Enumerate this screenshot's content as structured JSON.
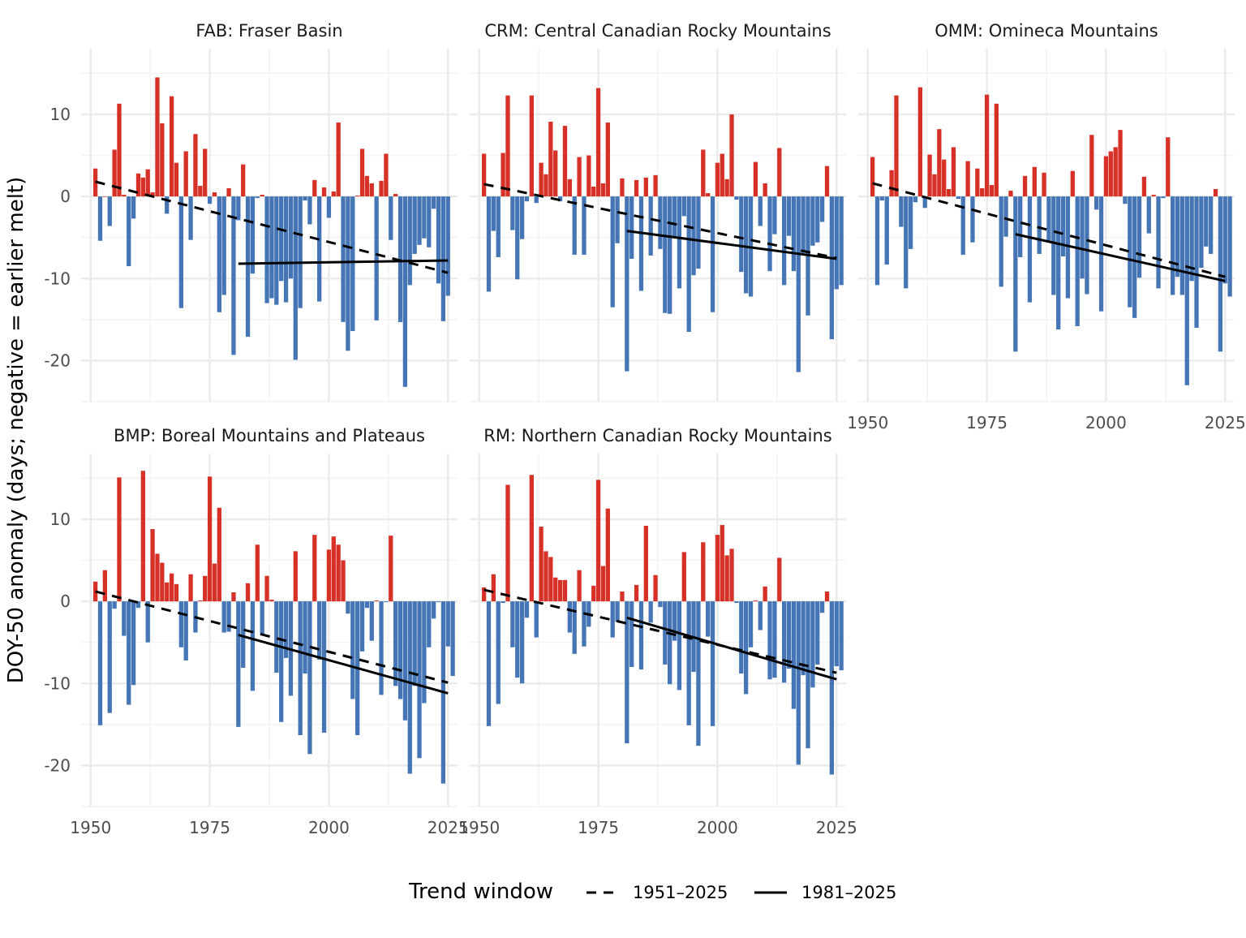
{
  "axes": {
    "ylabel": "DOY-50 anomaly (days; negative = earlier melt)",
    "yticks": [
      -20,
      -10,
      0,
      10
    ],
    "xticks": [
      1950,
      1975,
      2000,
      2025
    ],
    "xlim": [
      1948,
      2027
    ],
    "ylim": [
      -25,
      18
    ]
  },
  "legend": {
    "title": "Trend window",
    "items": [
      {
        "label": "1951–2025",
        "linetype": "dashed"
      },
      {
        "label": "1981–2025",
        "linetype": "solid"
      }
    ]
  },
  "colors": {
    "positive": "#d73027",
    "negative": "#4575b4",
    "trend": "#000000",
    "grid": "#ebebeb"
  },
  "chart_data": [
    {
      "type": "bar",
      "title": "FAB: Fraser Basin",
      "years_start": 1951,
      "values": [
        3.4,
        -5.4,
        0.0,
        -3.6,
        5.7,
        11.3,
        0.2,
        -8.5,
        -2.7,
        2.8,
        2.3,
        3.3,
        0.5,
        14.5,
        8.9,
        -2.1,
        12.2,
        4.1,
        -13.6,
        5.5,
        -5.3,
        7.6,
        1.3,
        5.8,
        -0.9,
        0.5,
        -14.1,
        -12.0,
        1.0,
        -19.3,
        -2.9,
        3.9,
        -17.1,
        -9.4,
        -0.2,
        0.2,
        -13.0,
        -12.4,
        -13.2,
        -10.3,
        -12.9,
        -10.0,
        -19.9,
        -13.6,
        -0.5,
        -3.4,
        2.0,
        -12.8,
        1.1,
        -2.6,
        0.6,
        9.0,
        -15.3,
        -18.8,
        -16.4,
        0.1,
        5.8,
        2.5,
        1.6,
        -15.1,
        1.9,
        5.2,
        -5.3,
        0.3,
        -15.3,
        -23.2,
        -10.8,
        -7.0,
        -5.9,
        -5.1,
        -6.2,
        -1.5,
        -10.6,
        -15.2,
        -12.1
      ],
      "trends": [
        {
          "window": "1951–2025",
          "linetype": "dashed",
          "x": [
            1951,
            2025
          ],
          "y": [
            1.8,
            -9.3
          ]
        },
        {
          "window": "1981–2025",
          "linetype": "solid",
          "x": [
            1981,
            2025
          ],
          "y": [
            -8.2,
            -7.8
          ]
        }
      ]
    },
    {
      "type": "bar",
      "title": "CRM: Central Canadian Rocky Mountains",
      "years_start": 1951,
      "values": [
        5.2,
        -11.6,
        -4.2,
        -7.4,
        5.3,
        12.3,
        -4.1,
        -10.1,
        -5.2,
        -0.6,
        12.3,
        -0.8,
        4.1,
        2.7,
        9.1,
        5.6,
        -0.6,
        8.6,
        2.1,
        -7.1,
        4.8,
        -7.1,
        5.0,
        1.2,
        13.2,
        1.6,
        9.0,
        -13.5,
        -5.7,
        2.2,
        -21.3,
        -7.6,
        2.0,
        -11.5,
        2.3,
        -7.2,
        2.6,
        -6.4,
        -14.2,
        -14.3,
        -4.9,
        -11.2,
        -2.4,
        -16.5,
        -9.6,
        -8.8,
        5.7,
        0.4,
        -14.1,
        4.1,
        5.2,
        2.1,
        10.0,
        -0.4,
        -9.2,
        -11.8,
        -12.2,
        4.2,
        -3.6,
        1.6,
        -9.1,
        -4.6,
        5.9,
        -10.8,
        -4.8,
        -9.1,
        -21.4,
        -6.9,
        -14.5,
        -6.0,
        -5.6,
        -3.1,
        3.7,
        -17.4,
        -11.3,
        -10.8
      ],
      "trends": [
        {
          "window": "1951–2025",
          "linetype": "dashed",
          "x": [
            1951,
            2025
          ],
          "y": [
            1.5,
            -7.5
          ]
        },
        {
          "window": "1981–2025",
          "linetype": "solid",
          "x": [
            1981,
            2025
          ],
          "y": [
            -4.2,
            -7.6
          ]
        }
      ]
    },
    {
      "type": "bar",
      "title": "OMM: Omineca Mountains",
      "years_start": 1951,
      "values": [
        4.8,
        -10.8,
        -0.5,
        -8.3,
        3.2,
        12.3,
        -3.7,
        -11.2,
        -6.4,
        -0.7,
        13.3,
        -1.4,
        5.1,
        2.7,
        8.2,
        4.5,
        0.9,
        6.0,
        -0.3,
        -7.1,
        4.3,
        -5.6,
        3.4,
        1.0,
        12.4,
        1.4,
        11.3,
        -11.0,
        -4.9,
        0.7,
        -18.9,
        -7.4,
        2.5,
        -12.9,
        3.6,
        -7.0,
        2.9,
        -5.5,
        -12.0,
        -16.2,
        -7.3,
        -12.4,
        3.1,
        -15.8,
        -10.0,
        -11.9,
        7.5,
        -1.6,
        -14.0,
        4.9,
        5.5,
        6.0,
        8.1,
        -0.9,
        -13.5,
        -14.8,
        -9.9,
        2.4,
        -4.5,
        0.2,
        -11.2,
        -0.2,
        7.2,
        -12.0,
        -9.8,
        -12.0,
        -23.0,
        -10.3,
        -16.0,
        -8.7,
        -6.1,
        -7.0,
        0.9,
        -18.9,
        -10.6,
        -12.2
      ],
      "trends": [
        {
          "window": "1951–2025",
          "linetype": "dashed",
          "x": [
            1951,
            2025
          ],
          "y": [
            1.6,
            -9.8
          ]
        },
        {
          "window": "1981–2025",
          "linetype": "solid",
          "x": [
            1981,
            2025
          ],
          "y": [
            -4.6,
            -10.3
          ]
        }
      ]
    },
    {
      "type": "bar",
      "title": "BMP: Boreal Mountains and Plateaus",
      "years_start": 1951,
      "values": [
        2.4,
        -15.1,
        3.8,
        -13.6,
        -0.9,
        15.1,
        -4.2,
        -12.6,
        -10.2,
        -0.8,
        15.9,
        -5.0,
        8.8,
        5.8,
        4.7,
        2.3,
        3.4,
        2.1,
        -5.6,
        -7.2,
        3.3,
        -3.8,
        0.1,
        3.1,
        15.2,
        4.6,
        11.4,
        -3.8,
        -3.7,
        1.1,
        -15.3,
        -8.1,
        2.2,
        -10.9,
        6.9,
        -4.0,
        3.1,
        0.2,
        -8.7,
        -14.7,
        -6.9,
        -11.5,
        6.1,
        -16.3,
        -8.8,
        -18.6,
        8.1,
        -7.1,
        -16.0,
        6.3,
        7.9,
        6.9,
        5.0,
        -1.5,
        -11.9,
        -16.3,
        -6.1,
        -0.8,
        -4.8,
        0.1,
        -11.4,
        -0.1,
        8.0,
        -10.3,
        -11.9,
        -14.5,
        -21.0,
        -10.3,
        -19.1,
        -12.4,
        -5.6,
        -2.1,
        -0.1,
        -22.2,
        -5.5,
        -9.1
      ],
      "trends": [
        {
          "window": "1951–2025",
          "linetype": "dashed",
          "x": [
            1951,
            2025
          ],
          "y": [
            1.2,
            -9.9
          ]
        },
        {
          "window": "1981–2025",
          "linetype": "solid",
          "x": [
            1981,
            2025
          ],
          "y": [
            -4.1,
            -11.2
          ]
        }
      ]
    },
    {
      "type": "bar",
      "title": "RM: Northern Canadian Rocky Mountains",
      "years_start": 1951,
      "values": [
        1.7,
        -15.2,
        3.3,
        -12.5,
        -0.2,
        14.2,
        -5.6,
        -9.3,
        -10.0,
        -2.0,
        15.4,
        -4.4,
        9.1,
        6.1,
        5.4,
        2.9,
        2.6,
        2.6,
        -3.8,
        -6.4,
        3.8,
        -5.5,
        -3.1,
        1.9,
        14.8,
        4.3,
        11.3,
        -4.4,
        -2.5,
        1.2,
        -17.3,
        -8.0,
        2.0,
        -8.3,
        9.2,
        -2.6,
        3.2,
        -0.7,
        -7.7,
        -10.1,
        -4.8,
        -10.8,
        6.0,
        -15.1,
        -8.6,
        -17.6,
        7.2,
        -4.3,
        -15.2,
        8.1,
        9.3,
        5.6,
        6.4,
        -0.2,
        -8.8,
        -11.3,
        -5.6,
        0.1,
        -3.5,
        1.8,
        -9.5,
        -9.3,
        5.3,
        -9.9,
        -8.2,
        -13.1,
        -19.9,
        -9.0,
        -17.9,
        -10.5,
        -7.7,
        -1.4,
        1.2,
        -21.1,
        -7.9,
        -8.4
      ],
      "trends": [
        {
          "window": "1951–2025",
          "linetype": "dashed",
          "x": [
            1951,
            2025
          ],
          "y": [
            1.4,
            -8.7
          ]
        },
        {
          "window": "1981–2025",
          "linetype": "solid",
          "x": [
            1981,
            2025
          ],
          "y": [
            -2.0,
            -9.5
          ]
        }
      ]
    }
  ]
}
